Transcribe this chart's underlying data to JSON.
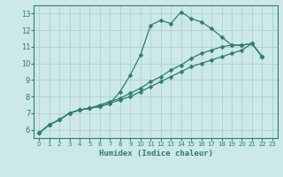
{
  "xlabel": "Humidex (Indice chaleur)",
  "ylabel": "",
  "bg_color": "#cce8e8",
  "grid_color": "#aacccc",
  "line_color": "#2e7d6e",
  "xlim": [
    -0.5,
    23.5
  ],
  "ylim": [
    5.5,
    13.5
  ],
  "xticks": [
    0,
    1,
    2,
    3,
    4,
    5,
    6,
    7,
    8,
    9,
    10,
    11,
    12,
    13,
    14,
    15,
    16,
    17,
    18,
    19,
    20,
    21,
    22,
    23
  ],
  "yticks": [
    6,
    7,
    8,
    9,
    10,
    11,
    12,
    13
  ],
  "line1_x": [
    0,
    1,
    2,
    3,
    4,
    5,
    6,
    7,
    8,
    9,
    10,
    11,
    12,
    13,
    14,
    15,
    16,
    17,
    18,
    19,
    20,
    21,
    22
  ],
  "line1_y": [
    5.8,
    6.3,
    6.6,
    7.0,
    7.2,
    7.3,
    7.4,
    7.6,
    8.3,
    9.3,
    10.5,
    12.3,
    12.6,
    12.4,
    13.1,
    12.7,
    12.5,
    12.1,
    11.6,
    11.1,
    11.1,
    11.2,
    10.4
  ],
  "line2_x": [
    0,
    1,
    2,
    3,
    4,
    5,
    6,
    7,
    8,
    9,
    10,
    11,
    12,
    13,
    14,
    15,
    16,
    17,
    18,
    19,
    20,
    21,
    22
  ],
  "line2_y": [
    5.8,
    6.3,
    6.6,
    7.0,
    7.2,
    7.3,
    7.5,
    7.7,
    7.9,
    8.2,
    8.5,
    8.9,
    9.2,
    9.6,
    9.9,
    10.3,
    10.6,
    10.8,
    11.0,
    11.1,
    11.1,
    11.2,
    10.4
  ],
  "line3_x": [
    0,
    1,
    2,
    3,
    4,
    5,
    6,
    7,
    8,
    9,
    10,
    11,
    12,
    13,
    14,
    15,
    16,
    17,
    18,
    19,
    20,
    21,
    22
  ],
  "line3_y": [
    5.8,
    6.3,
    6.6,
    7.0,
    7.2,
    7.3,
    7.4,
    7.6,
    7.8,
    8.0,
    8.3,
    8.6,
    8.9,
    9.2,
    9.5,
    9.8,
    10.0,
    10.2,
    10.4,
    10.6,
    10.8,
    11.2,
    10.4
  ]
}
